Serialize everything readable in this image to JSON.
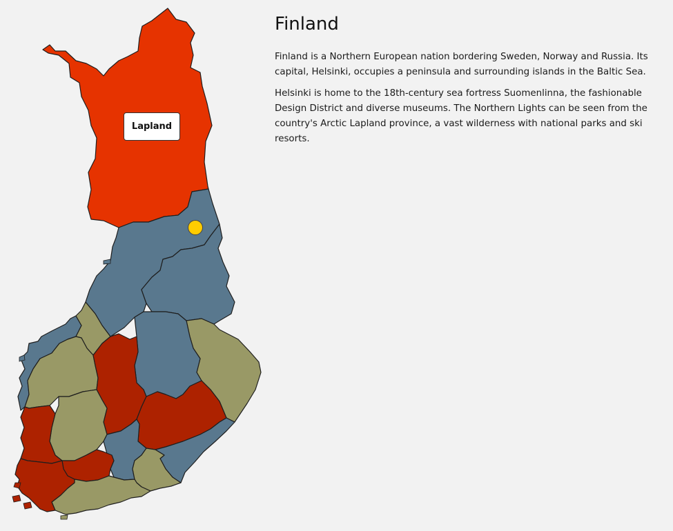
{
  "info": {
    "title": "Finland",
    "paragraphs": [
      "Finland is a Northern European nation bordering Sweden, Norway and Russia. Its capital, Helsinki, occupies a peninsula and surrounding islands in the Baltic Sea.",
      "Helsinki is home to the 18th-century sea fortress Suomenlinna, the fashionable Design District and diverse museums. The Northern Lights can be seen from the country's Arctic Lapland province, a vast wilderness with national parks and ski resorts."
    ]
  },
  "map": {
    "tooltip": "Lapland",
    "hovered_region": "Lapland",
    "colors": {
      "highlight": "#e63300",
      "red": "#ad2200",
      "blue": "#59788e",
      "olive": "#999966",
      "marker": "#ffcc00",
      "border": "#1e1e1e"
    },
    "marker": {
      "name": "location-marker"
    }
  }
}
